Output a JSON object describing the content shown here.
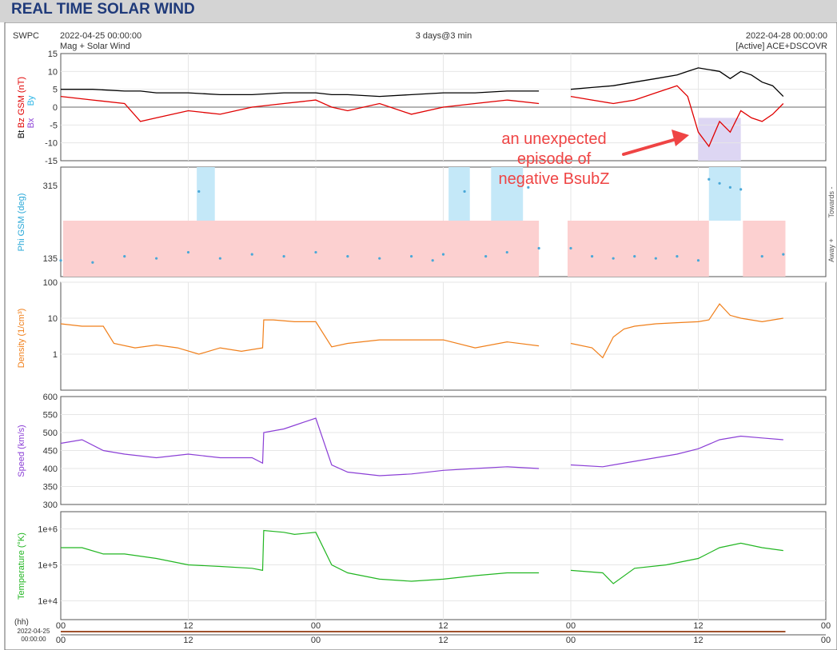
{
  "header": {
    "title": "REAL TIME SOLAR WIND"
  },
  "info": {
    "source": "SWPC",
    "start": "2022-04-25 00:00:00",
    "end": "2022-04-28 00:00:00",
    "span": "3 days@3 min",
    "subtitle": "Mag + Solar Wind",
    "status": "[Active] ACE+DSCOVR"
  },
  "annotation": {
    "lines": [
      "an unexpected",
      "episode of",
      "negative BsubZ"
    ],
    "color": "#ef4444"
  },
  "bottom": {
    "hh_label": "(hh)",
    "date": "2022-04-25",
    "time": "00:00:00"
  },
  "xaxis": {
    "ticks": [
      0,
      12,
      24,
      36,
      48,
      60,
      72
    ],
    "labels": [
      "00",
      "12",
      "00",
      "12",
      "00",
      "12",
      "00"
    ]
  },
  "chart_data": [
    {
      "type": "line",
      "panel": "mag",
      "ylabel_parts": [
        "Bt",
        "Bz GSM (nT)",
        "Bx",
        "By"
      ],
      "ylim": [
        -15,
        15
      ],
      "yticks": [
        15,
        10,
        5,
        0,
        -5,
        -10,
        -15
      ],
      "x": [
        0,
        3,
        6,
        7.5,
        9,
        12,
        15,
        18,
        21,
        24,
        25.5,
        27,
        30,
        33,
        36,
        39,
        42,
        45,
        45.2,
        47.5,
        48,
        50,
        52,
        54,
        56,
        58,
        59,
        60,
        61,
        62,
        63,
        64,
        65,
        66,
        67,
        68
      ],
      "series": [
        {
          "name": "Bt",
          "color": "#000000",
          "values": [
            5,
            5,
            4.5,
            4.5,
            4,
            4,
            3.5,
            3.5,
            4,
            4,
            3.5,
            3.5,
            3,
            3.5,
            4,
            4,
            4.5,
            4.5,
            null,
            null,
            5,
            5.5,
            6,
            7,
            8,
            9,
            10,
            11,
            10.5,
            10,
            8,
            10,
            9,
            7,
            6,
            3
          ]
        },
        {
          "name": "Bz",
          "color": "#e00000",
          "values": [
            3,
            2,
            1,
            -4,
            -3,
            -1,
            -2,
            0,
            1,
            2,
            0,
            -1,
            1,
            -2,
            0,
            1,
            2,
            1,
            null,
            null,
            3,
            2,
            1,
            2,
            4,
            6,
            3,
            -7,
            -11,
            -4,
            -7,
            -1,
            -3,
            -4,
            -2,
            1
          ]
        }
      ],
      "highlight": [
        {
          "from": 60,
          "to": 64
        }
      ]
    },
    {
      "type": "scatter",
      "panel": "phi",
      "ylabel": "Phi GSM (deg)",
      "yticks": [
        315,
        135
      ],
      "right_labels": [
        "Towards -",
        "Away +"
      ],
      "color": "#4aa8d8",
      "x": [
        0,
        3,
        6,
        9,
        12,
        13,
        15,
        18,
        21,
        24,
        27,
        30,
        33,
        35,
        36,
        38,
        40,
        42,
        44,
        45,
        48,
        50,
        52,
        54,
        56,
        58,
        60,
        61,
        62,
        63,
        64,
        66,
        68
      ],
      "values": [
        130,
        125,
        140,
        135,
        150,
        300,
        135,
        145,
        140,
        150,
        140,
        135,
        140,
        130,
        145,
        300,
        140,
        150,
        310,
        160,
        160,
        140,
        135,
        140,
        135,
        140,
        130,
        330,
        320,
        310,
        305,
        140,
        145
      ]
    },
    {
      "type": "line",
      "panel": "density",
      "ylabel": "Density (1/cm³)",
      "yscale": "log",
      "ylim": [
        0.1,
        100
      ],
      "yticks": [
        "100",
        "10",
        "1"
      ],
      "color": "#f07f1a",
      "x": [
        0,
        2,
        4,
        5,
        7,
        9,
        11,
        13,
        15,
        17,
        19,
        19.1,
        20,
        22,
        24,
        25.5,
        27,
        30,
        33,
        36,
        39,
        42,
        45,
        45.2,
        47.5,
        48,
        50,
        51,
        52,
        53,
        54,
        56,
        58,
        60,
        61,
        62,
        63,
        64,
        66,
        68
      ],
      "values": [
        7,
        6,
        6,
        2,
        1.5,
        1.8,
        1.5,
        1,
        1.5,
        1.2,
        1.5,
        9,
        9,
        8,
        8,
        1.6,
        2,
        2.5,
        2.5,
        2.5,
        1.5,
        2.2,
        1.7,
        null,
        null,
        2,
        1.5,
        0.8,
        3,
        5,
        6,
        7,
        7.5,
        8,
        9,
        25,
        12,
        10,
        8,
        10
      ]
    },
    {
      "type": "line",
      "panel": "speed",
      "ylabel": "Speed (km/s)",
      "ylim": [
        300,
        600
      ],
      "yticks": [
        600,
        550,
        500,
        450,
        400,
        350,
        300
      ],
      "color": "#8b3fd6",
      "x": [
        0,
        2,
        4,
        6,
        9,
        12,
        15,
        18,
        19,
        19.1,
        21,
        22,
        24,
        25.5,
        27,
        30,
        33,
        36,
        39,
        42,
        45,
        45.2,
        47.5,
        48,
        51,
        54,
        56,
        58,
        60,
        62,
        64,
        66,
        68
      ],
      "values": [
        470,
        480,
        450,
        440,
        430,
        440,
        430,
        430,
        415,
        500,
        510,
        520,
        540,
        410,
        390,
        380,
        385,
        395,
        400,
        405,
        400,
        null,
        null,
        410,
        405,
        420,
        430,
        440,
        455,
        480,
        490,
        485,
        480
      ]
    },
    {
      "type": "line",
      "panel": "temperature",
      "ylabel": "Temperature (°K)",
      "yscale": "log",
      "ylim": [
        3000,
        3000000
      ],
      "yticks": [
        "1e+6",
        "1e+5",
        "1e+4"
      ],
      "color": "#22b622",
      "x": [
        0,
        2,
        4,
        6,
        9,
        12,
        15,
        18,
        19,
        19.1,
        21,
        22,
        24,
        25.5,
        27,
        30,
        33,
        36,
        39,
        42,
        45,
        45.2,
        47.5,
        48,
        51,
        52,
        54,
        57,
        60,
        62,
        64,
        66,
        68
      ],
      "values": [
        300000,
        300000,
        200000,
        200000,
        150000,
        100000,
        90000,
        80000,
        70000,
        900000,
        800000,
        700000,
        800000,
        100000,
        60000,
        40000,
        35000,
        40000,
        50000,
        60000,
        60000,
        null,
        null,
        70000,
        60000,
        30000,
        80000,
        100000,
        150000,
        300000,
        400000,
        300000,
        250000
      ]
    }
  ]
}
